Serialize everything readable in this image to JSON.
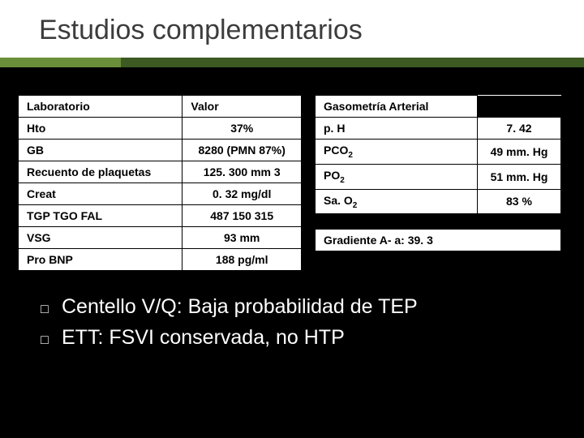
{
  "title": "Estudios complementarios",
  "colors": {
    "background": "#000000",
    "title_bg": "#ffffff",
    "title_text": "#3c3c3c",
    "accent_left": "#6a8f3a",
    "accent_right": "#3d5a23",
    "table_bg": "#ffffff",
    "table_border": "#000000",
    "table_text": "#000000",
    "bullet_text": "#ffffff"
  },
  "lab_table": {
    "headers": [
      "Laboratorio",
      "Valor"
    ],
    "rows": [
      [
        "Hto",
        "37%"
      ],
      [
        "GB",
        "8280 (PMN 87%)"
      ],
      [
        "Recuento de plaquetas",
        "125. 300 mm 3"
      ],
      [
        "Creat",
        "0. 32 mg/dl"
      ],
      [
        "TGP TGO FAL",
        "487 150 315"
      ],
      [
        "VSG",
        "93 mm"
      ],
      [
        "Pro BNP",
        "188 pg/ml"
      ]
    ]
  },
  "gas_table": {
    "header": "Gasometría  Arterial",
    "rows": [
      [
        "p. H",
        "7. 42"
      ],
      [
        "PCO 2",
        "49 mm. Hg"
      ],
      [
        "PO 2",
        "51 mm. Hg"
      ],
      [
        "Sa. O 2",
        "83 %"
      ]
    ]
  },
  "gradient": "Gradiente A- a:  39. 3",
  "bullets": [
    {
      "lead": "Centello V/Q:",
      "rest": " Baja probabilidad de TEP"
    },
    {
      "lead": "ETT:",
      "rest": " FSVI conservada, no HTP"
    }
  ]
}
